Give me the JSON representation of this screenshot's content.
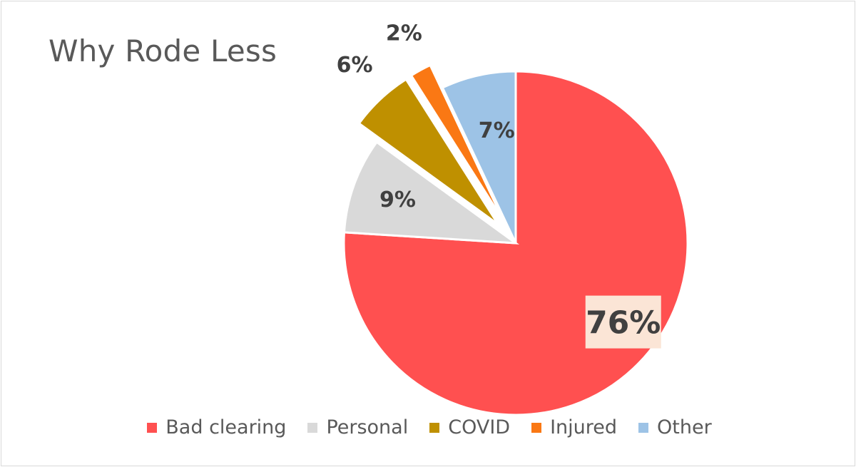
{
  "chart_data": {
    "type": "pie",
    "title": "Why Rode Less",
    "slices": [
      {
        "name": "Bad clearing",
        "value": 76,
        "label": "76%",
        "color": "#ff5050",
        "exploded": false
      },
      {
        "name": "Personal",
        "value": 9,
        "label": "9%",
        "color": "#d9d9d9",
        "exploded": false
      },
      {
        "name": "COVID",
        "value": 6,
        "label": "6%",
        "color": "#bf9000",
        "exploded": true
      },
      {
        "name": "Injured",
        "value": 2,
        "label": "2%",
        "color": "#fa7814",
        "exploded": true
      },
      {
        "name": "Other",
        "value": 7,
        "label": "7%",
        "color": "#9dc3e6",
        "exploded": false
      }
    ],
    "legend_position": "bottom",
    "start_angle": "12 o'clock",
    "direction": "clockwise"
  }
}
